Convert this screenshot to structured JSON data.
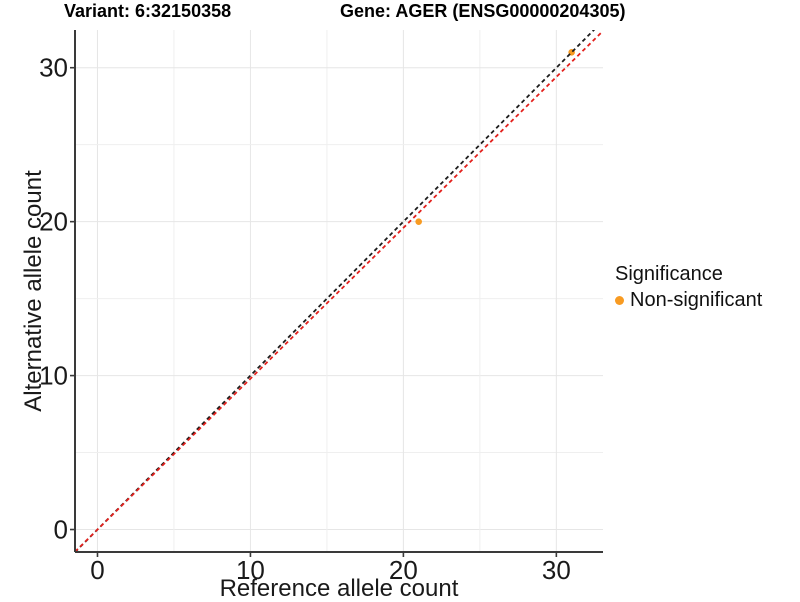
{
  "titles": {
    "variant": "Variant: 6:32150358",
    "gene": "Gene: AGER (ENSG00000204305)"
  },
  "legend": {
    "title": "Significance",
    "items": [
      {
        "label": "Non-significant",
        "color": "#f89b22"
      }
    ]
  },
  "chart_data": {
    "type": "scatter",
    "title_left": "Variant: 6:32150358",
    "title_right": "Gene: AGER (ENSG00000204305)",
    "xlabel": "Reference allele count",
    "ylabel": "Alternative allele count",
    "xlim": [
      -1.47,
      33.05
    ],
    "ylim": [
      -1.46,
      32.45
    ],
    "x_ticks": [
      0,
      10,
      20,
      30
    ],
    "y_ticks": [
      0,
      10,
      20,
      30
    ],
    "grid_step_minor": 5,
    "grid_on": true,
    "legend_title": "Significance",
    "legend_position": "right",
    "series": [
      {
        "name": "Non-significant",
        "color": "#f89b22",
        "points": [
          [
            21,
            20
          ],
          [
            31,
            31
          ]
        ]
      }
    ],
    "lines": [
      {
        "name": "identity-line",
        "slope": 1,
        "intercept": 0,
        "color": "#1c1c1c",
        "dashed": true
      },
      {
        "name": "expected-ratio-line",
        "slope": 0.98,
        "intercept": 0,
        "color": "#e3201c",
        "dashed": true
      }
    ],
    "colors": {
      "grid_minor": "#efefef",
      "grid_major": "#e6e6e6",
      "axis_line": "#3a3a3a",
      "tick_text": "#1a1a1a",
      "point": "#f89b22"
    }
  }
}
